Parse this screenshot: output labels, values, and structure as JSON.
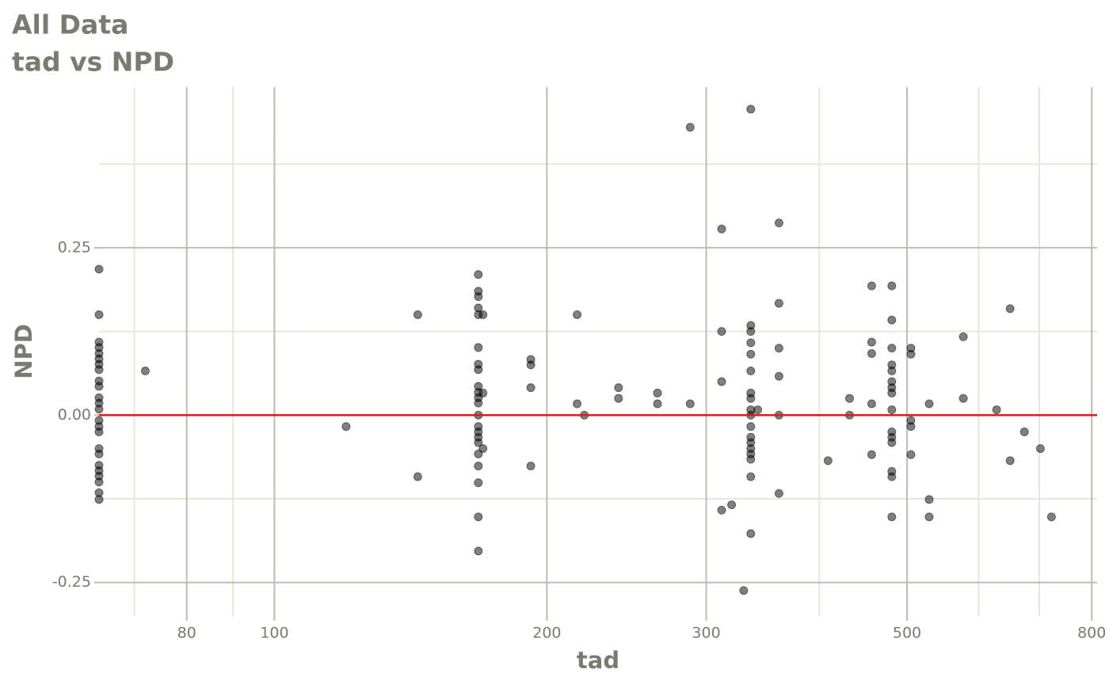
{
  "chart_data": {
    "type": "scatter",
    "title": "All Data",
    "subtitle": "tad vs NPD",
    "x_label": "tad",
    "y_label": "NPD",
    "xscale": "log",
    "grid": true,
    "xlim": [
      64,
      811
    ],
    "ylim": [
      -0.3,
      0.49
    ],
    "xticks": [
      80,
      100,
      200,
      300,
      500,
      800
    ],
    "xminor": [
      70,
      90,
      400,
      600,
      700
    ],
    "yticks": [
      -0.25,
      {
        "value": 0,
        "label": "0.00"
      },
      0.25
    ],
    "yminor": [
      -0.125,
      0.125,
      0.375
    ],
    "reference_line": 0,
    "reference_color": "#d81b1b",
    "point_color": "#000000",
    "point_opacity": 0.5,
    "x": [
      64,
      64,
      64,
      64,
      64,
      64,
      64,
      64,
      64,
      64,
      64,
      64,
      64,
      64,
      64,
      64,
      64,
      64,
      64,
      64,
      64,
      64,
      64,
      64,
      72,
      120,
      144,
      144,
      168,
      168,
      168,
      168,
      168,
      168,
      168,
      168,
      168,
      168,
      168,
      168,
      168,
      168,
      168,
      168,
      168,
      168,
      168,
      168,
      168,
      168,
      170,
      170,
      170,
      192,
      192,
      192,
      192,
      216,
      216,
      220,
      240,
      240,
      265,
      265,
      288,
      288,
      312,
      312,
      312,
      312,
      320,
      330,
      336,
      336,
      336,
      336,
      336,
      336,
      336,
      336,
      336,
      336,
      336,
      336,
      336,
      336,
      336,
      336,
      336,
      336,
      342,
      361,
      361,
      361,
      361,
      361,
      361,
      409,
      432,
      432,
      457,
      457,
      457,
      457,
      457,
      481,
      481,
      481,
      481,
      481,
      481,
      481,
      481,
      481,
      481,
      481,
      481,
      481,
      481,
      481,
      505,
      505,
      505,
      505,
      505,
      529,
      529,
      529,
      577,
      577,
      628,
      650,
      650,
      674,
      702,
      722
    ],
    "y": [
      0.218,
      0.15,
      0.109,
      0.101,
      0.092,
      0.084,
      0.076,
      0.068,
      0.051,
      0.043,
      0.026,
      0.018,
      0.009,
      -0.008,
      -0.017,
      -0.025,
      -0.05,
      -0.058,
      -0.075,
      -0.083,
      -0.091,
      -0.1,
      -0.116,
      -0.126,
      0.066,
      -0.017,
      0.15,
      -0.092,
      0.21,
      0.185,
      0.177,
      0.16,
      0.15,
      0.101,
      0.076,
      0.068,
      0.043,
      0.034,
      0.026,
      0.018,
      0,
      -0.017,
      -0.025,
      -0.033,
      -0.041,
      -0.058,
      -0.076,
      -0.101,
      -0.152,
      -0.203,
      0.15,
      0.033,
      -0.05,
      0.083,
      0.075,
      0.041,
      -0.076,
      0.15,
      0.017,
      0,
      0.041,
      0.025,
      0.033,
      0.017,
      0.43,
      0.017,
      0.278,
      0.125,
      0.05,
      -0.142,
      -0.134,
      -0.262,
      0.457,
      0.134,
      0.125,
      0.108,
      0.091,
      0.066,
      0.033,
      0.025,
      0.008,
      0,
      -0.017,
      -0.033,
      -0.041,
      -0.05,
      -0.058,
      -0.066,
      -0.092,
      -0.177,
      0.008,
      0.287,
      0.167,
      0.1,
      0.058,
      0,
      -0.117,
      -0.068,
      0.025,
      0,
      0.193,
      0.109,
      0.092,
      0.017,
      -0.059,
      0.193,
      0.142,
      0.1,
      0.075,
      0.066,
      0.05,
      0.041,
      0.033,
      0.008,
      -0.025,
      -0.033,
      -0.041,
      -0.084,
      -0.092,
      -0.152,
      0.1,
      0.091,
      -0.008,
      -0.017,
      -0.059,
      0.017,
      -0.126,
      -0.152,
      0.117,
      0.025,
      0.008,
      0.159,
      -0.068,
      -0.025,
      -0.05,
      -0.152
    ]
  }
}
